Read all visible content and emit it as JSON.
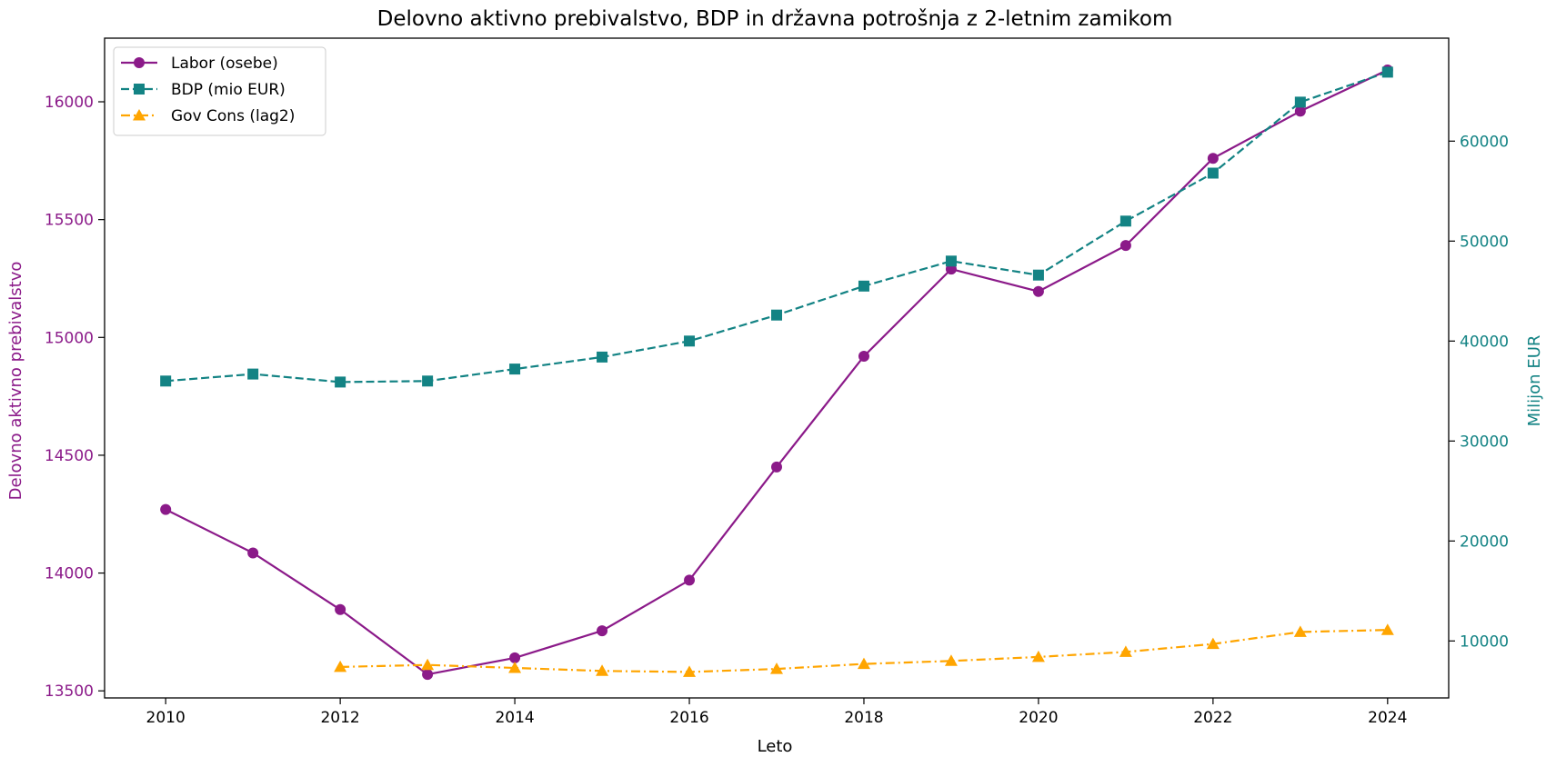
{
  "chart_data": {
    "type": "line",
    "title": "Delovno aktivno prebivalstvo, BDP in državna potrošnja z 2-letnim zamikom",
    "xlabel": "Leto",
    "ylabel_left": "Delovno aktivno prebivalstvo",
    "ylabel_right": "Milijon EUR",
    "x": [
      2010,
      2011,
      2012,
      2013,
      2014,
      2015,
      2016,
      2017,
      2018,
      2019,
      2020,
      2021,
      2022,
      2023,
      2024
    ],
    "xlim": [
      2009.3,
      2024.7
    ],
    "ylim_left": [
      13470,
      16270
    ],
    "ylim_right": [
      4300,
      70300
    ],
    "xticks": [
      2010,
      2012,
      2014,
      2016,
      2018,
      2020,
      2022,
      2024
    ],
    "yticks_left": [
      13500,
      14000,
      14500,
      15000,
      15500,
      16000
    ],
    "yticks_right": [
      10000,
      20000,
      30000,
      40000,
      50000,
      60000
    ],
    "legend_position": "top-left",
    "grid": false,
    "series": [
      {
        "name": "Labor (osebe)",
        "axis": "left",
        "color": "#8b1a89",
        "marker": "circle",
        "dash": "solid",
        "values": [
          14270,
          14085,
          13845,
          13570,
          13640,
          13755,
          13970,
          14450,
          14920,
          15290,
          15195,
          15390,
          15760,
          15960,
          16135
        ]
      },
      {
        "name": "BDP (mio EUR)",
        "axis": "right",
        "color": "#138384",
        "marker": "square",
        "dash": "dashed",
        "values": [
          36000,
          36700,
          35900,
          36000,
          37200,
          38400,
          40000,
          42600,
          45500,
          48000,
          46600,
          52000,
          56800,
          63900,
          66900
        ]
      },
      {
        "name": "Gov Cons (lag2)",
        "axis": "right",
        "color": "#ffa500",
        "marker": "triangle",
        "dash": "dashdot",
        "values": [
          null,
          null,
          7400,
          7600,
          7300,
          7000,
          6900,
          7200,
          7700,
          8000,
          8400,
          8900,
          9700,
          10900,
          11100
        ]
      }
    ]
  }
}
